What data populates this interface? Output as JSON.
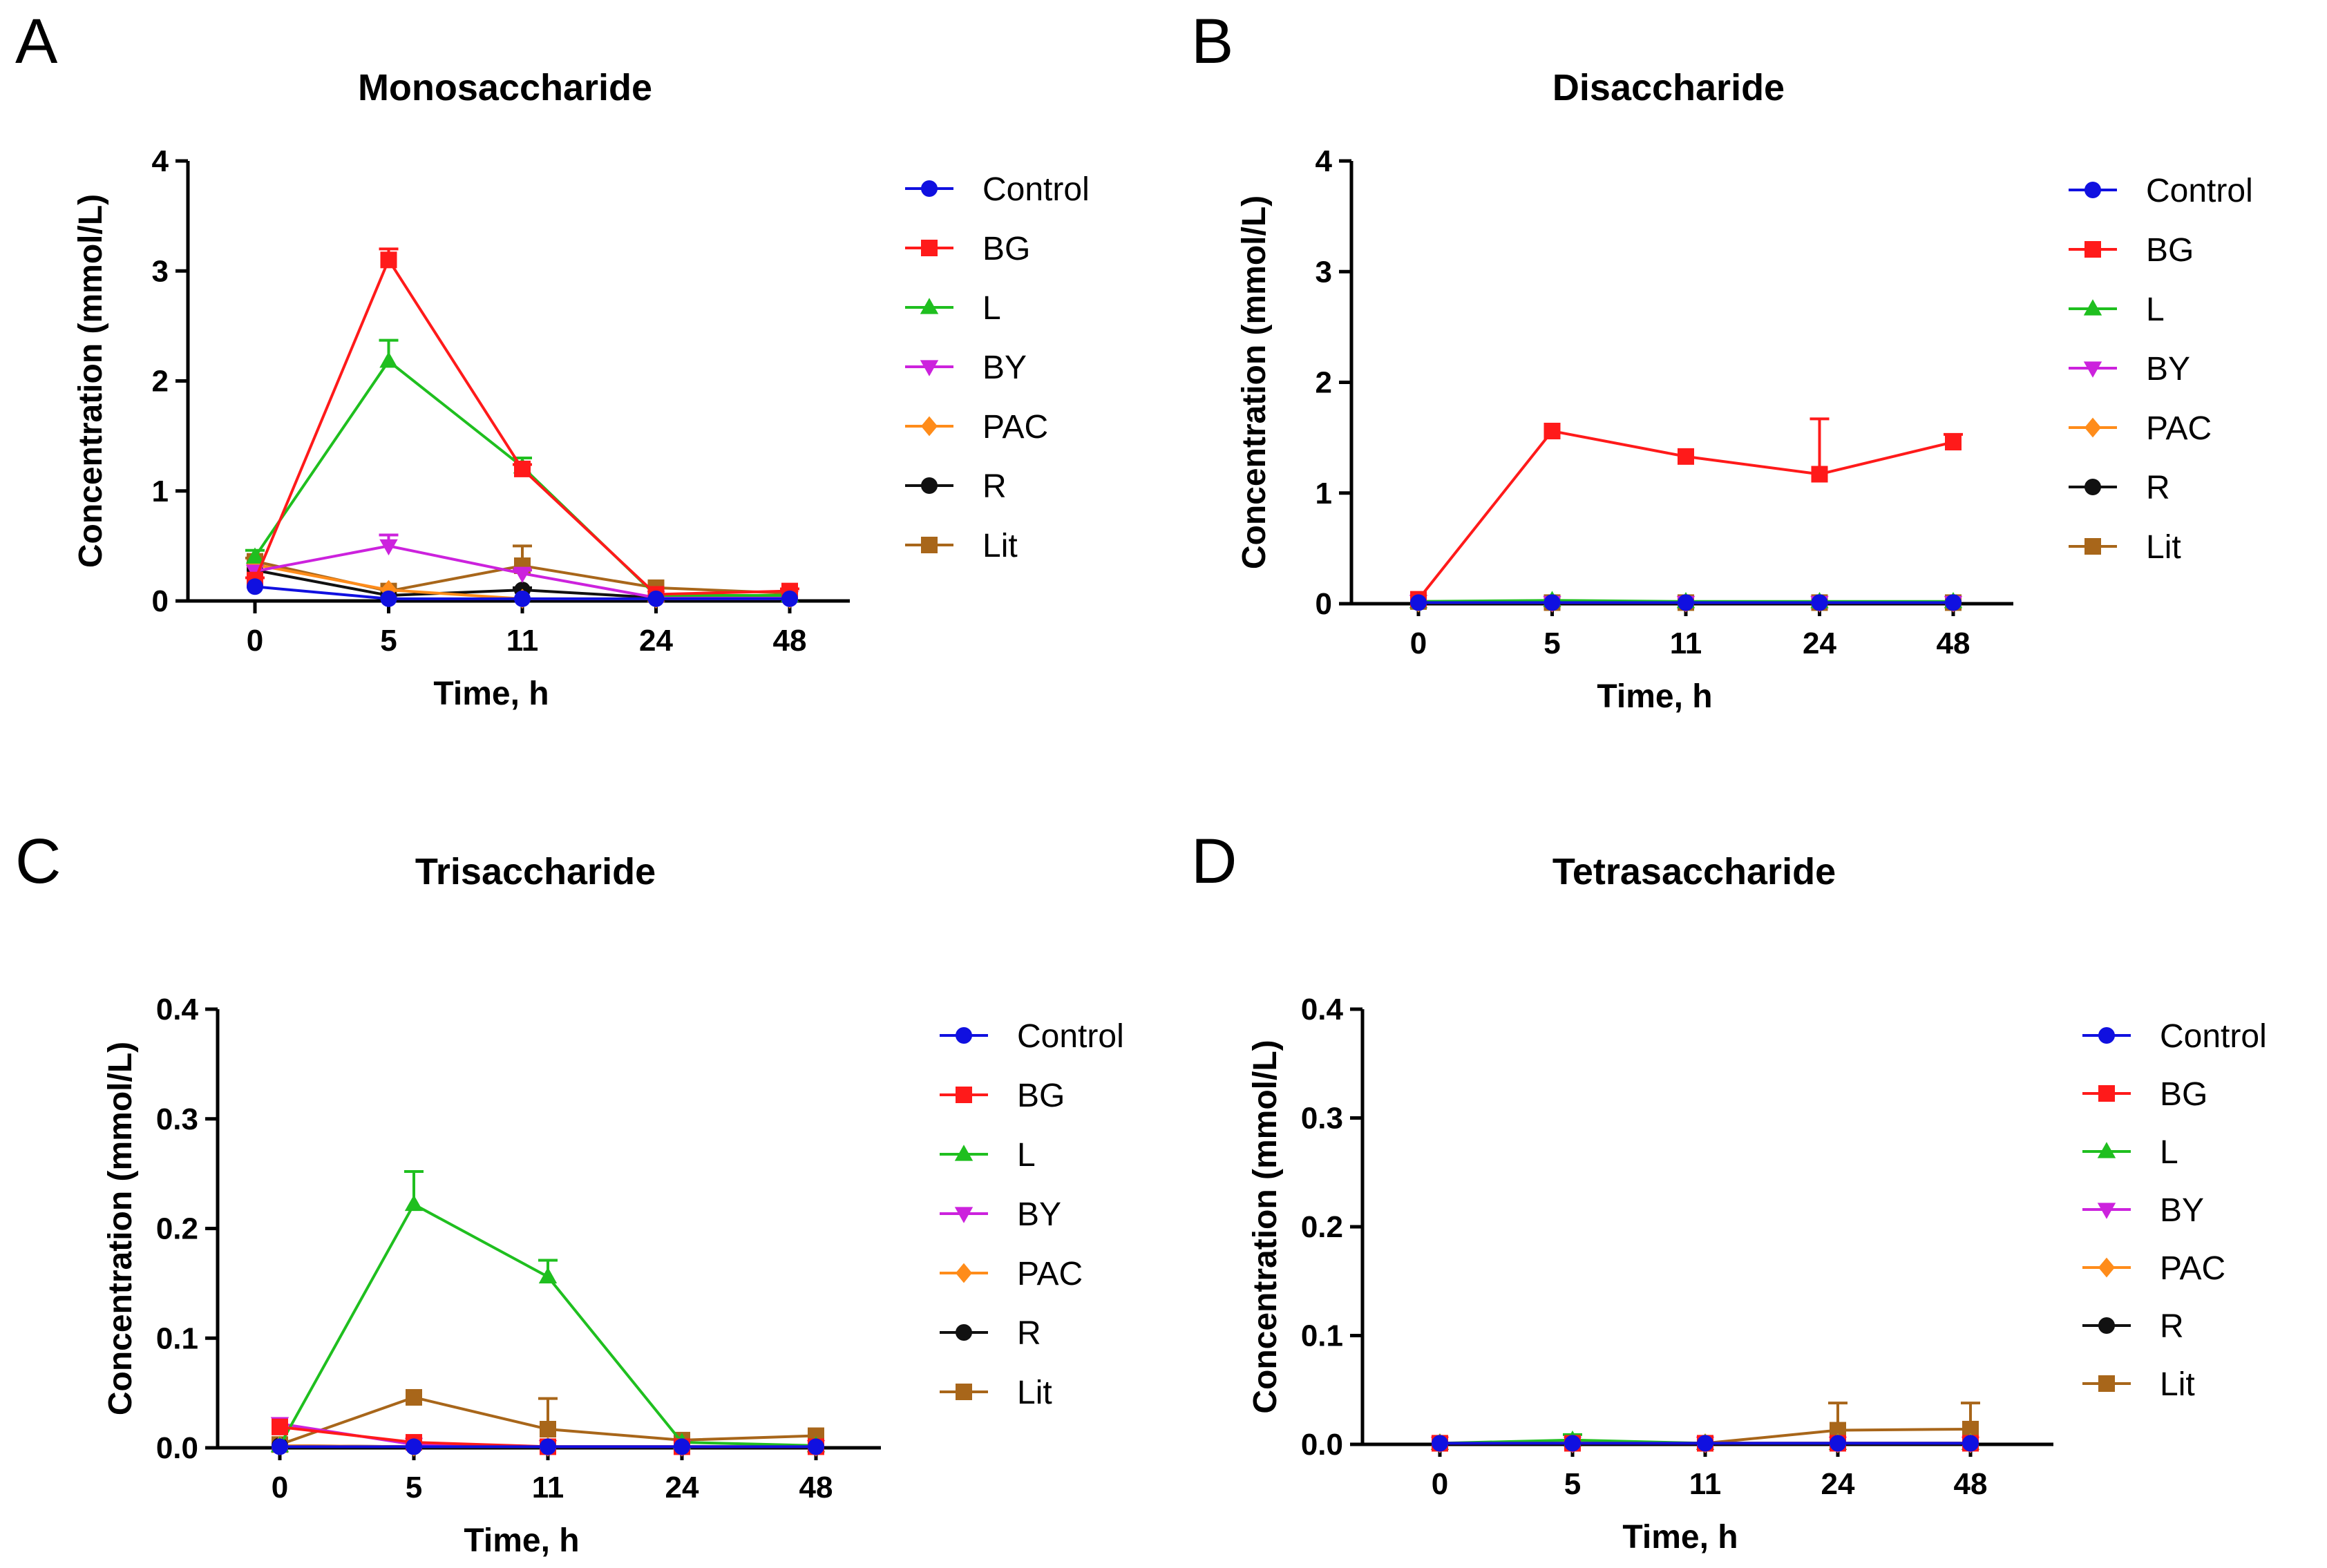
{
  "figure": {
    "legend_entries": [
      "Control",
      "BG",
      "L",
      "BY",
      "PAC",
      "R",
      "Lit"
    ]
  },
  "chart_data": [
    {
      "panel_letter": "A",
      "type": "line",
      "title": "Monosaccharide",
      "xlabel": "Time, h",
      "ylabel": "Concentration (mmol/L)",
      "categories": [
        "0",
        "5",
        "11",
        "24",
        "48"
      ],
      "ylim": [
        0,
        4
      ],
      "yticks": [
        "0",
        "1",
        "2",
        "3",
        "4"
      ],
      "legend_position": "right",
      "series": [
        {
          "name": "Control",
          "color": "#1010e0",
          "marker": "circle",
          "values": [
            0.13,
            0.02,
            0.02,
            0.02,
            0.02
          ],
          "errors": [
            0,
            0,
            0,
            0,
            0
          ]
        },
        {
          "name": "BG",
          "color": "#ff1a1a",
          "marker": "square",
          "values": [
            0.19,
            3.1,
            1.2,
            0.06,
            0.09
          ],
          "errors": [
            0.02,
            0.1,
            0.04,
            0,
            0.02
          ]
        },
        {
          "name": "L",
          "color": "#1fbf1f",
          "marker": "triangle",
          "values": [
            0.4,
            2.18,
            1.22,
            0.05,
            0.05
          ],
          "errors": [
            0.06,
            0.19,
            0.08,
            0,
            0
          ]
        },
        {
          "name": "BY",
          "color": "#cc22dd",
          "marker": "tri-down",
          "values": [
            0.27,
            0.5,
            0.25,
            0.03,
            0.03
          ],
          "errors": [
            0,
            0.1,
            0.03,
            0,
            0
          ]
        },
        {
          "name": "PAC",
          "color": "#ff8c1a",
          "marker": "diamond",
          "values": [
            0.33,
            0.1,
            0.02,
            0.02,
            0.02
          ],
          "errors": [
            0,
            0,
            0,
            0,
            0
          ]
        },
        {
          "name": "R",
          "color": "#111111",
          "marker": "circle",
          "values": [
            0.28,
            0.05,
            0.1,
            0.03,
            0.03
          ],
          "errors": [
            0,
            0,
            0.02,
            0,
            0
          ]
        },
        {
          "name": "Lit",
          "color": "#a8661a",
          "marker": "square",
          "values": [
            0.36,
            0.09,
            0.32,
            0.12,
            0.07
          ],
          "errors": [
            0.03,
            0,
            0.18,
            0,
            0
          ]
        }
      ]
    },
    {
      "panel_letter": "B",
      "type": "line",
      "title": "Disaccharide",
      "xlabel": "Time, h",
      "ylabel": "Concentration (mmol/L)",
      "categories": [
        "0",
        "5",
        "11",
        "24",
        "48"
      ],
      "ylim": [
        0,
        4
      ],
      "yticks": [
        "0",
        "1",
        "2",
        "3",
        "4"
      ],
      "legend_position": "right",
      "series": [
        {
          "name": "Control",
          "color": "#1010e0",
          "marker": "circle",
          "values": [
            0.01,
            0.01,
            0.01,
            0.01,
            0.01
          ],
          "errors": [
            0,
            0,
            0,
            0,
            0
          ]
        },
        {
          "name": "BG",
          "color": "#ff1a1a",
          "marker": "square",
          "values": [
            0.04,
            1.56,
            1.33,
            1.17,
            1.46
          ],
          "errors": [
            0,
            0,
            0,
            0.5,
            0.07
          ]
        },
        {
          "name": "L",
          "color": "#1fbf1f",
          "marker": "triangle",
          "values": [
            0.02,
            0.03,
            0.02,
            0.02,
            0.02
          ],
          "errors": [
            0,
            0,
            0,
            0,
            0
          ]
        },
        {
          "name": "BY",
          "color": "#cc22dd",
          "marker": "tri-down",
          "values": [
            0.02,
            0.01,
            0.01,
            0.01,
            0.01
          ],
          "errors": [
            0,
            0,
            0,
            0,
            0
          ]
        },
        {
          "name": "PAC",
          "color": "#ff8c1a",
          "marker": "diamond",
          "values": [
            0.01,
            0.01,
            0.01,
            0.01,
            0.01
          ],
          "errors": [
            0,
            0,
            0,
            0,
            0
          ]
        },
        {
          "name": "R",
          "color": "#111111",
          "marker": "circle",
          "values": [
            0.01,
            0.01,
            0.01,
            0.01,
            0.01
          ],
          "errors": [
            0,
            0,
            0,
            0,
            0
          ]
        },
        {
          "name": "Lit",
          "color": "#a8661a",
          "marker": "square",
          "values": [
            0.02,
            0.01,
            0.01,
            0.01,
            0.01
          ],
          "errors": [
            0,
            0,
            0,
            0,
            0
          ]
        }
      ]
    },
    {
      "panel_letter": "C",
      "type": "line",
      "title": "Trisaccharide",
      "xlabel": "Time, h",
      "ylabel": "Concentration (mmol/L)",
      "categories": [
        "0",
        "5",
        "11",
        "24",
        "48"
      ],
      "ylim": [
        0,
        0.4
      ],
      "yticks": [
        "0.0",
        "0.1",
        "0.2",
        "0.3",
        "0.4"
      ],
      "legend_position": "right",
      "series": [
        {
          "name": "Control",
          "color": "#1010e0",
          "marker": "circle",
          "values": [
            0.001,
            0.001,
            0.001,
            0.001,
            0.001
          ],
          "errors": [
            0,
            0,
            0,
            0,
            0
          ]
        },
        {
          "name": "BG",
          "color": "#ff1a1a",
          "marker": "square",
          "values": [
            0.019,
            0.005,
            0.001,
            0.001,
            0.001
          ],
          "errors": [
            0,
            0,
            0,
            0,
            0
          ]
        },
        {
          "name": "L",
          "color": "#1fbf1f",
          "marker": "triangle",
          "values": [
            0.002,
            0.222,
            0.156,
            0.005,
            0.002
          ],
          "errors": [
            0,
            0.03,
            0.015,
            0,
            0
          ]
        },
        {
          "name": "BY",
          "color": "#cc22dd",
          "marker": "tri-down",
          "values": [
            0.022,
            0.003,
            0.001,
            0.001,
            0.001
          ],
          "errors": [
            0,
            0,
            0,
            0,
            0
          ]
        },
        {
          "name": "PAC",
          "color": "#ff8c1a",
          "marker": "diamond",
          "values": [
            0.002,
            0.001,
            0.001,
            0.001,
            0.001
          ],
          "errors": [
            0,
            0,
            0,
            0,
            0
          ]
        },
        {
          "name": "R",
          "color": "#111111",
          "marker": "circle",
          "values": [
            0.002,
            0.001,
            0.001,
            0.001,
            0.001
          ],
          "errors": [
            0,
            0,
            0,
            0,
            0
          ]
        },
        {
          "name": "Lit",
          "color": "#a8661a",
          "marker": "square",
          "values": [
            0.003,
            0.046,
            0.017,
            0.007,
            0.011
          ],
          "errors": [
            0,
            0,
            0.028,
            0,
            0
          ]
        }
      ]
    },
    {
      "panel_letter": "D",
      "type": "line",
      "title": "Tetrasaccharide",
      "xlabel": "Time, h",
      "ylabel": "Concentration (mmol/L)",
      "categories": [
        "0",
        "5",
        "11",
        "24",
        "48"
      ],
      "ylim": [
        0,
        0.4
      ],
      "yticks": [
        "0.0",
        "0.1",
        "0.2",
        "0.3",
        "0.4"
      ],
      "legend_position": "right",
      "series": [
        {
          "name": "Control",
          "color": "#1010e0",
          "marker": "circle",
          "values": [
            0.001,
            0.001,
            0.001,
            0.001,
            0.001
          ],
          "errors": [
            0,
            0,
            0,
            0,
            0
          ]
        },
        {
          "name": "BG",
          "color": "#ff1a1a",
          "marker": "square",
          "values": [
            0.001,
            0.001,
            0.001,
            0.001,
            0.001
          ],
          "errors": [
            0,
            0,
            0,
            0,
            0
          ]
        },
        {
          "name": "L",
          "color": "#1fbf1f",
          "marker": "triangle",
          "values": [
            0.001,
            0.004,
            0.001,
            0.001,
            0.001
          ],
          "errors": [
            0,
            0.005,
            0,
            0,
            0
          ]
        },
        {
          "name": "BY",
          "color": "#cc22dd",
          "marker": "tri-down",
          "values": [
            0.001,
            0.001,
            0.001,
            0.001,
            0.001
          ],
          "errors": [
            0,
            0,
            0,
            0,
            0
          ]
        },
        {
          "name": "PAC",
          "color": "#ff8c1a",
          "marker": "diamond",
          "values": [
            0.001,
            0.001,
            0.001,
            0.001,
            0.001
          ],
          "errors": [
            0,
            0,
            0,
            0,
            0
          ]
        },
        {
          "name": "R",
          "color": "#111111",
          "marker": "circle",
          "values": [
            0.001,
            0.001,
            0.001,
            0.001,
            0.001
          ],
          "errors": [
            0,
            0,
            0,
            0,
            0
          ]
        },
        {
          "name": "Lit",
          "color": "#a8661a",
          "marker": "square",
          "values": [
            0.001,
            0.001,
            0.001,
            0.013,
            0.014
          ],
          "errors": [
            0,
            0,
            0,
            0.025,
            0.024
          ]
        }
      ]
    }
  ]
}
